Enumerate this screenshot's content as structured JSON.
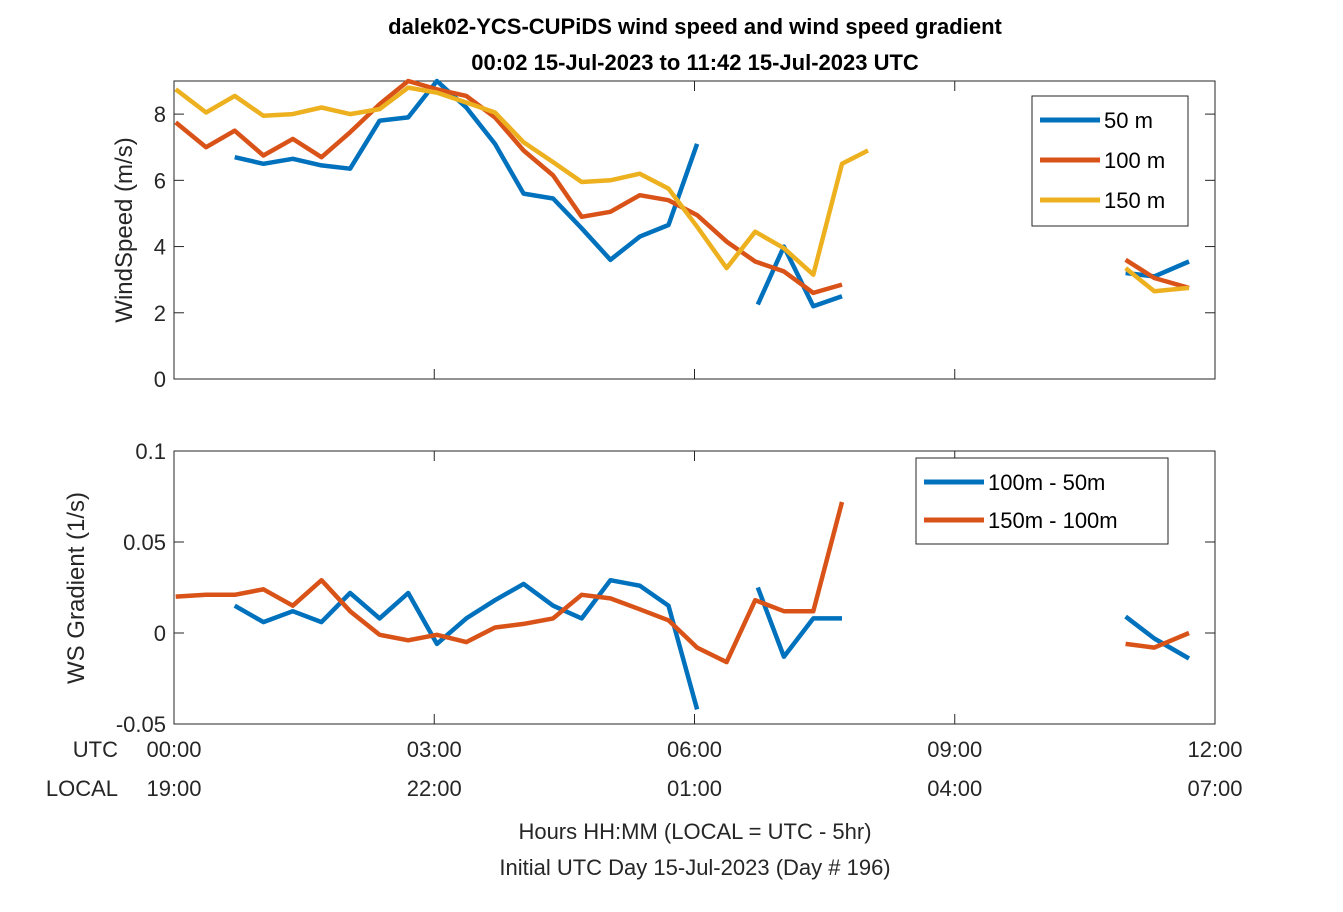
{
  "figure": {
    "title_line1": "dalek02-YCS-CUPiDS  wind speed and wind speed gradient",
    "title_line2": "00:02 15-Jul-2023 to 11:42 15-Jul-2023  UTC",
    "utc_label": "UTC",
    "local_label": "LOCAL",
    "xlabel_line1": "Hours HH:MM  (LOCAL = UTC - 5hr)",
    "xlabel_line2": "Initial UTC Day 15-Jul-2023 (Day # 196)",
    "utc_ticks": [
      "00:00",
      "03:00",
      "06:00",
      "09:00",
      "12:00"
    ],
    "local_ticks": [
      "19:00",
      "22:00",
      "01:00",
      "04:00",
      "07:00"
    ]
  },
  "chart_data": [
    {
      "type": "line",
      "ylabel": "WindSpeed (m/s)",
      "xlim": [
        0,
        12
      ],
      "ylim": [
        0,
        9
      ],
      "yticks": [
        0,
        2,
        4,
        6,
        8
      ],
      "ytick_labels": [
        "0",
        "2",
        "4",
        "6",
        "8"
      ],
      "xticks": [
        0,
        3,
        6,
        9,
        12
      ],
      "legend_position": "top-right",
      "series": [
        {
          "name": "50 m",
          "color": "#0072BD",
          "x": [
            0.7,
            1.03,
            1.37,
            1.7,
            2.03,
            2.37,
            2.7,
            3.03,
            3.37,
            3.7,
            4.03,
            4.37,
            4.7,
            5.03,
            5.37,
            5.7,
            6.03,
            null,
            6.73,
            7.03,
            7.37,
            7.7,
            null,
            10.97,
            11.3,
            11.7
          ],
          "y": [
            6.7,
            6.5,
            6.65,
            6.45,
            6.35,
            7.8,
            7.9,
            9.0,
            8.2,
            7.1,
            5.6,
            5.45,
            4.55,
            3.6,
            4.3,
            4.65,
            7.1,
            null,
            2.25,
            4.0,
            2.2,
            2.5,
            null,
            3.2,
            3.1,
            3.55
          ]
        },
        {
          "name": "100 m",
          "color": "#D95319",
          "x": [
            0.02,
            0.37,
            0.7,
            1.03,
            1.37,
            1.7,
            2.03,
            2.37,
            2.7,
            3.03,
            3.37,
            3.7,
            4.03,
            4.37,
            4.7,
            5.03,
            5.37,
            5.7,
            6.03,
            6.37,
            6.7,
            7.03,
            7.37,
            7.7,
            null,
            10.97,
            11.3,
            11.7
          ],
          "y": [
            7.75,
            7.0,
            7.5,
            6.75,
            7.25,
            6.7,
            7.45,
            8.3,
            9.0,
            8.75,
            8.55,
            7.9,
            6.9,
            6.15,
            4.9,
            5.05,
            5.55,
            5.4,
            4.95,
            4.15,
            3.55,
            3.25,
            2.6,
            2.85,
            null,
            3.6,
            3.05,
            2.75
          ]
        },
        {
          "name": "150 m",
          "color": "#EDB120",
          "x": [
            0.02,
            0.37,
            0.7,
            1.03,
            1.37,
            1.7,
            2.03,
            2.37,
            2.7,
            3.03,
            3.37,
            3.7,
            4.03,
            4.37,
            4.7,
            5.03,
            5.37,
            5.7,
            6.03,
            6.37,
            6.7,
            7.03,
            7.37,
            7.7,
            8.0,
            null,
            10.97,
            11.3,
            11.7
          ],
          "y": [
            8.75,
            8.05,
            8.55,
            7.95,
            8.0,
            8.2,
            8.0,
            8.15,
            8.8,
            8.65,
            8.35,
            8.05,
            7.15,
            6.55,
            5.95,
            6.0,
            6.2,
            5.75,
            4.6,
            3.35,
            4.45,
            3.95,
            3.15,
            6.5,
            6.9,
            null,
            3.35,
            2.65,
            2.75
          ]
        }
      ]
    },
    {
      "type": "line",
      "ylabel": "WS Gradient (1/s)",
      "xlim": [
        0,
        12
      ],
      "ylim": [
        -0.05,
        0.1
      ],
      "yticks": [
        -0.05,
        0,
        0.05,
        0.1
      ],
      "ytick_labels": [
        "-0.05",
        "0",
        "0.05",
        "0.1"
      ],
      "xticks": [
        0,
        3,
        6,
        9,
        12
      ],
      "legend_position": "top-right",
      "series": [
        {
          "name": "100m - 50m",
          "color": "#0072BD",
          "x": [
            0.7,
            1.03,
            1.37,
            1.7,
            2.03,
            2.37,
            2.7,
            3.03,
            3.37,
            3.7,
            4.03,
            4.37,
            4.7,
            5.03,
            5.37,
            5.7,
            6.03,
            null,
            6.73,
            7.03,
            7.37,
            7.7,
            null,
            10.97,
            11.3,
            11.7
          ],
          "y": [
            0.015,
            0.006,
            0.012,
            0.006,
            0.022,
            0.008,
            0.022,
            -0.006,
            0.008,
            0.018,
            0.027,
            0.015,
            0.008,
            0.029,
            0.026,
            0.015,
            -0.042,
            null,
            0.025,
            -0.013,
            0.008,
            0.008,
            null,
            0.009,
            -0.003,
            -0.014
          ]
        },
        {
          "name": "150m - 100m",
          "color": "#D95319",
          "x": [
            0.02,
            0.37,
            0.7,
            1.03,
            1.37,
            1.7,
            2.03,
            2.37,
            2.7,
            3.03,
            3.37,
            3.7,
            4.03,
            4.37,
            4.7,
            5.03,
            5.37,
            5.7,
            6.03,
            6.37,
            6.7,
            7.03,
            7.37,
            7.7,
            null,
            10.97,
            11.3,
            11.7
          ],
          "y": [
            0.02,
            0.021,
            0.021,
            0.024,
            0.015,
            0.029,
            0.012,
            -0.001,
            -0.004,
            -0.001,
            -0.005,
            0.003,
            0.005,
            0.008,
            0.021,
            0.019,
            0.013,
            0.007,
            -0.008,
            -0.016,
            0.018,
            0.012,
            0.012,
            0.072,
            null,
            -0.006,
            -0.008,
            0.0
          ]
        }
      ]
    }
  ]
}
